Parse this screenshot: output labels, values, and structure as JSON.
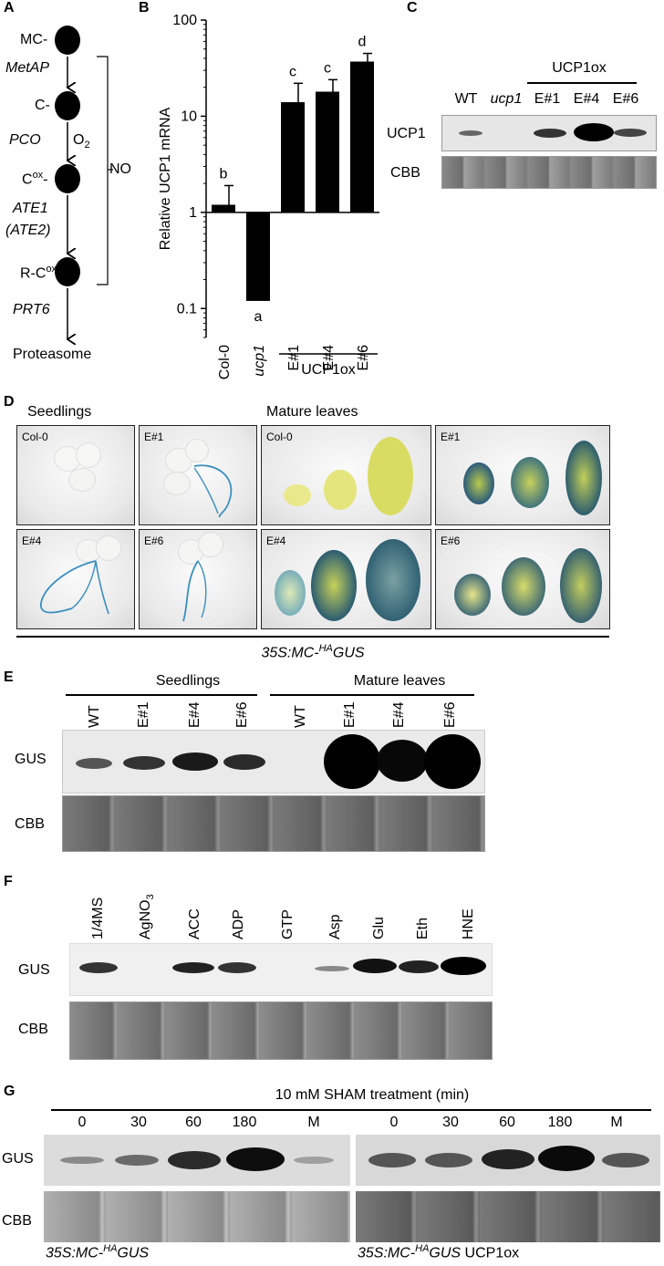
{
  "panelA": {
    "letter": "A",
    "nodes": [
      "MC-",
      "C-",
      "C",
      "R-C"
    ],
    "node_sup": [
      "",
      "",
      "ox",
      "ox"
    ],
    "enzymes": [
      "MetAP",
      "PCO",
      "ATE1",
      "(ATE2)",
      "PRT6"
    ],
    "o2": "O",
    "o2_sub": "2",
    "no_label": "NO",
    "end": "Proteasome"
  },
  "panelB": {
    "letter": "B",
    "chart_data": {
      "type": "bar",
      "ylabel": "Relative UCP1 mRNA",
      "yscale": "log",
      "ylim": [
        0.05,
        100
      ],
      "yticks": [
        "100",
        "10",
        "1",
        "0.1"
      ],
      "categories": [
        "Col-0",
        "ucp1",
        "E#1",
        "E#4",
        "E#6"
      ],
      "values": [
        1.2,
        0.12,
        14,
        18,
        37
      ],
      "errors_upper": [
        1.9,
        null,
        22,
        24,
        45
      ],
      "significance": [
        "b",
        "a",
        "c",
        "c",
        "d"
      ],
      "group_label": "UCP1ox"
    }
  },
  "panelC": {
    "letter": "C",
    "group_label": "UCP1ox",
    "lanes": [
      "WT",
      "ucp1",
      "E#1",
      "E#4",
      "E#6"
    ],
    "rows": [
      "UCP1",
      "CBB"
    ]
  },
  "panelD": {
    "letter": "D",
    "seedlings_title": "Seedlings",
    "leaves_title": "Mature leaves",
    "tags": [
      "Col-0",
      "E#1",
      "Col-0",
      "E#1",
      "E#4",
      "E#6",
      "E#4",
      "E#6"
    ],
    "construct": "35S:MC-",
    "construct_sup": "HA",
    "construct_tail": "GUS"
  },
  "panelE": {
    "letter": "E",
    "groups": [
      "Seedlings",
      "Mature leaves"
    ],
    "lanes": [
      "WT",
      "E#1",
      "E#4",
      "E#6",
      "WT",
      "E#1",
      "E#4",
      "E#6"
    ],
    "rows": [
      "GUS",
      "CBB"
    ]
  },
  "panelF": {
    "letter": "F",
    "lanes": [
      "1/4MS",
      "AgNO",
      "ACC",
      "ADP",
      "GTP",
      "Asp",
      "Glu",
      "Eth",
      "HNE"
    ],
    "agno_sub": "3",
    "rows": [
      "GUS",
      "CBB"
    ]
  },
  "panelG": {
    "letter": "G",
    "title": "10 mM SHAM treatment (min)",
    "lanes_left": [
      "0",
      "30",
      "60",
      "180",
      "M"
    ],
    "lanes_right": [
      "0",
      "30",
      "60",
      "180",
      "M"
    ],
    "rows": [
      "GUS",
      "CBB"
    ],
    "caption_left_a": "35S:MC-",
    "caption_left_sup": "HA",
    "caption_left_b": "GUS",
    "caption_right_a": "35S:MC-",
    "caption_right_sup": "HA",
    "caption_right_b": "GUS",
    "caption_right_c": " UCP1ox"
  }
}
